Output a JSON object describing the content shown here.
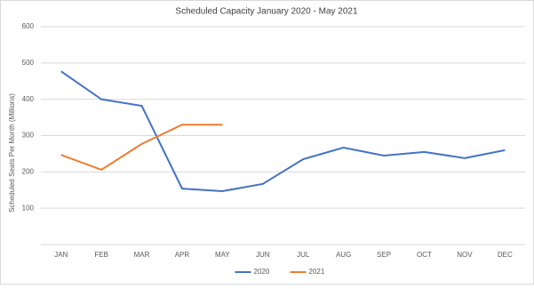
{
  "chart_data": {
    "type": "line",
    "title": "Scheduled Capacity January 2020 - May 2021",
    "y_label": "Scheduled Seats Per Month (Millions)",
    "categories": [
      "JAN",
      "FEB",
      "MAR",
      "APR",
      "MAY",
      "JUN",
      "JUL",
      "AUG",
      "SEP",
      "OCT",
      "NOV",
      "DEC"
    ],
    "series": [
      {
        "name": "2020",
        "color": "#4472c4",
        "values": [
          477,
          400,
          382,
          154,
          147,
          167,
          235,
          267,
          245,
          255,
          238,
          260
        ]
      },
      {
        "name": "2021",
        "color": "#ed7d31",
        "values": [
          247,
          206,
          277,
          330,
          330,
          null,
          null,
          null,
          null,
          null,
          null,
          null
        ]
      }
    ],
    "ylim": [
      0,
      600
    ],
    "yticks": [
      100,
      200,
      300,
      400,
      500,
      600
    ],
    "grid": true,
    "legend": "bottom"
  }
}
